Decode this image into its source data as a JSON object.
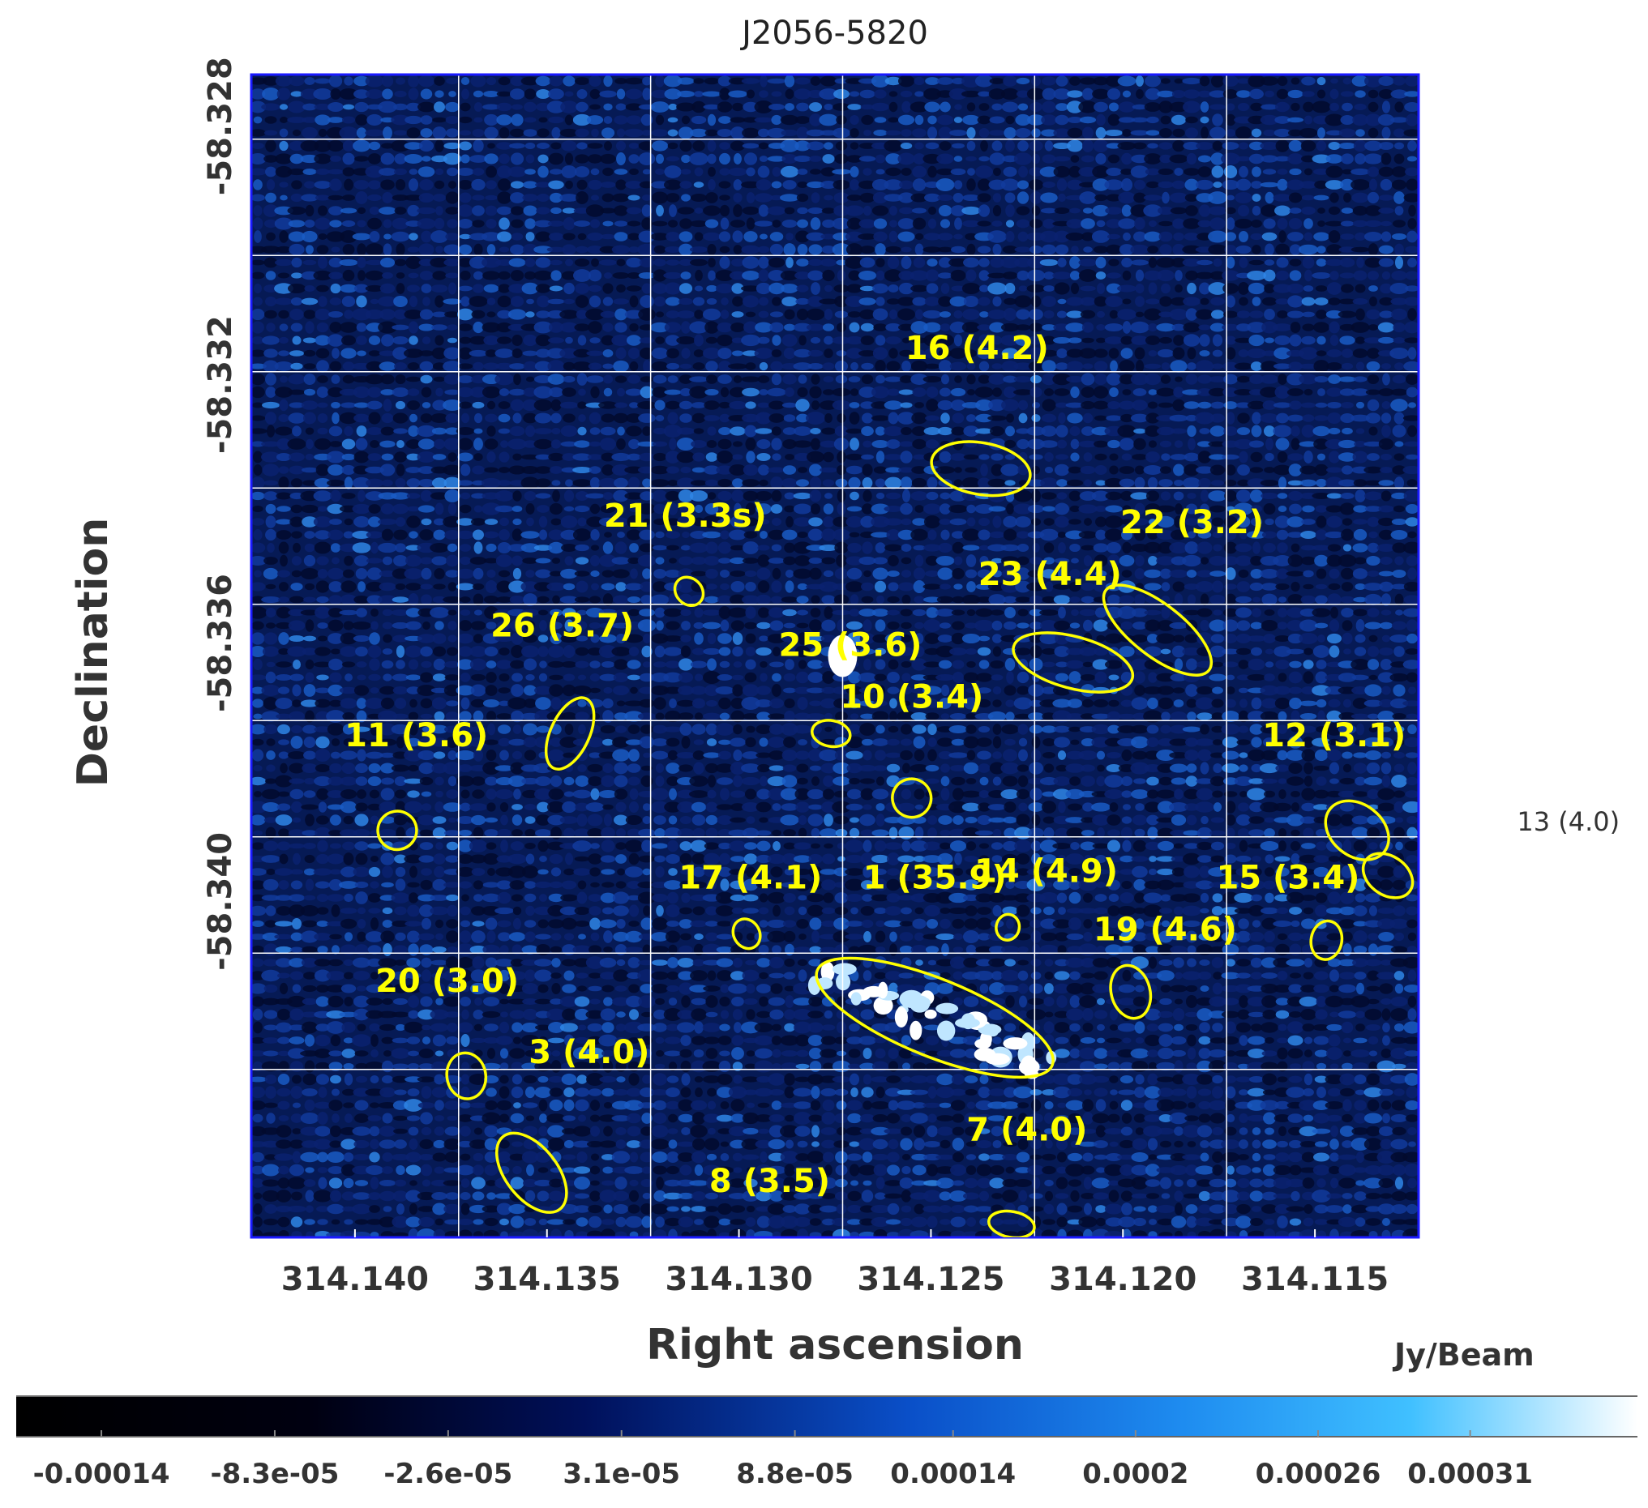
{
  "title": "J2056-5820",
  "xlabel": "Right ascension",
  "ylabel": "Declination",
  "colorbar_unit": "Jy/Beam",
  "colors": {
    "background_map": "#061a55",
    "grid": "#ffffff",
    "ellipse": "#ffff00",
    "label": "#ffff00",
    "frame": "#1a1aff"
  },
  "chart_data": {
    "type": "heatmap",
    "title": "J2056-5820",
    "xlabel": "Right ascension",
    "ylabel": "Declination",
    "xlim": [
      314.1427,
      314.1123
    ],
    "ylim": [
      -58.3452,
      -58.3272
    ],
    "x_ticks": [
      {
        "value": 314.14,
        "label": "314.140"
      },
      {
        "value": 314.135,
        "label": "314.135"
      },
      {
        "value": 314.13,
        "label": "314.130"
      },
      {
        "value": 314.125,
        "label": "314.125"
      },
      {
        "value": 314.12,
        "label": "314.120"
      },
      {
        "value": 314.115,
        "label": "314.115"
      }
    ],
    "y_ticks": [
      {
        "value": -58.328,
        "label": "-58.328"
      },
      {
        "value": -58.332,
        "label": "-58.332"
      },
      {
        "value": -58.336,
        "label": "-58.336"
      },
      {
        "value": -58.34,
        "label": "-58.340"
      }
    ],
    "grid_x": [
      314.1373,
      314.1323,
      314.1273,
      314.1223,
      314.1173,
      314.1123
    ],
    "grid": true,
    "bright_spot": {
      "ra": 314.1273,
      "dec": -58.3362
    },
    "colorbar": {
      "unit": "Jy/Beam",
      "range": [
        -0.000168,
        0.000365
      ],
      "ticks": [
        {
          "value": -0.00014,
          "label": "-0.00014"
        },
        {
          "value": -8.3e-05,
          "label": "-8.3e-05"
        },
        {
          "value": -2.6e-05,
          "label": "-2.6e-05"
        },
        {
          "value": 3.1e-05,
          "label": "3.1e-05"
        },
        {
          "value": 8.8e-05,
          "label": "8.8e-05"
        },
        {
          "value": 0.00014,
          "label": "0.00014"
        },
        {
          "value": 0.0002,
          "label": "0.0002"
        },
        {
          "value": 0.00026,
          "label": "0.00026"
        },
        {
          "value": 0.00031,
          "label": "0.00031"
        }
      ]
    },
    "sources": [
      {
        "id": "1",
        "label": "1 (35.9)",
        "ra": 314.1249,
        "dec": -58.3418,
        "rx": 0.0033,
        "ry": 0.0006,
        "angle": 22,
        "lra": 314.1249,
        "ldec": -58.3398
      },
      {
        "id": "3",
        "label": "3 (4.0)",
        "ra": 314.1354,
        "dec": -58.3442,
        "rx": 0.0012,
        "ry": 0.0004,
        "angle": 52,
        "lra": 314.1339,
        "ldec": -58.3425
      },
      {
        "id": "7",
        "label": "7 (4.0)",
        "ra": 314.1229,
        "dec": -58.345,
        "rx": 0.0006,
        "ry": 0.0002,
        "angle": 10,
        "lra": 314.1225,
        "ldec": -58.3437
      },
      {
        "id": "8",
        "label": "8 (3.5)",
        "ra": 314.1298,
        "dec": -58.3456,
        "rx": 0.0003,
        "ry": 0.0001,
        "angle": 10,
        "lra": 314.1292,
        "ldec": -58.3445
      },
      {
        "id": "10",
        "label": "10 (3.4)",
        "ra": 314.1255,
        "dec": -58.3384,
        "rx": 0.0005,
        "ry": 0.0003,
        "angle": -60,
        "lra": 314.1255,
        "ldec": -58.337
      },
      {
        "id": "11",
        "label": "11 (3.6)",
        "ra": 314.1389,
        "dec": -58.3389,
        "rx": 0.0005,
        "ry": 0.0003,
        "angle": 80,
        "lra": 314.1384,
        "ldec": -58.3376
      },
      {
        "id": "12",
        "label": "12 (3.1)",
        "ra": 314.1139,
        "dec": -58.3389,
        "rx": 0.0009,
        "ry": 0.0004,
        "angle": 38,
        "lra": 314.1145,
        "ldec": -58.3376
      },
      {
        "id": "13",
        "label": "13 (4.0)",
        "ra": 314.1131,
        "dec": -58.3396,
        "rx": 0.0007,
        "ry": 0.0003,
        "angle": 35,
        "lra": 314.1084,
        "ldec": -58.3389
      },
      {
        "id": "14",
        "label": "14 (4.9)",
        "ra": 314.123,
        "dec": -58.3404,
        "rx": 0.0003,
        "ry": 0.0002,
        "angle": 10,
        "lra": 314.122,
        "ldec": -58.3397
      },
      {
        "id": "15",
        "label": "15 (3.4)",
        "ra": 314.1147,
        "dec": -58.3406,
        "rx": 0.0004,
        "ry": 0.0003,
        "angle": 10,
        "lra": 314.1157,
        "ldec": -58.3398
      },
      {
        "id": "16",
        "label": "16 (4.2)",
        "ra": 314.1237,
        "dec": -58.3333,
        "rx": 0.0013,
        "ry": 0.0004,
        "angle": 10,
        "lra": 314.1238,
        "ldec": -58.3316
      },
      {
        "id": "17",
        "label": "17 (4.1)",
        "ra": 314.1298,
        "dec": -58.3405,
        "rx": 0.0004,
        "ry": 0.0002,
        "angle": 60,
        "lra": 314.1297,
        "ldec": -58.3398
      },
      {
        "id": "19",
        "label": "19 (4.6)",
        "ra": 314.1198,
        "dec": -58.3414,
        "rx": 0.0007,
        "ry": 0.0003,
        "angle": 75,
        "lra": 314.1189,
        "ldec": -58.3406
      },
      {
        "id": "20",
        "label": "20 (3.0)",
        "ra": 314.1371,
        "dec": -58.3427,
        "rx": 0.0006,
        "ry": 0.0003,
        "angle": 80,
        "lra": 314.1376,
        "ldec": -58.3414
      },
      {
        "id": "21",
        "label": "21 (3.3s)",
        "ra": 314.1313,
        "dec": -58.3352,
        "rx": 0.0004,
        "ry": 0.0002,
        "angle": 45,
        "lra": 314.1314,
        "ldec": -58.3342
      },
      {
        "id": "22",
        "label": "22 (3.2)",
        "ra": 314.1191,
        "dec": -58.3358,
        "rx": 0.0017,
        "ry": 0.0004,
        "angle": 38,
        "lra": 314.1182,
        "ldec": -58.3343
      },
      {
        "id": "23",
        "label": "23 (4.4)",
        "ra": 314.1213,
        "dec": -58.3363,
        "rx": 0.0016,
        "ry": 0.0004,
        "angle": 15,
        "lra": 314.1219,
        "ldec": -58.3351
      },
      {
        "id": "25",
        "label": "25 (3.6)",
        "ra": 314.1276,
        "dec": -58.3374,
        "rx": 0.0005,
        "ry": 0.0002,
        "angle": 10,
        "lra": 314.1271,
        "ldec": -58.3362
      },
      {
        "id": "26",
        "label": "26 (3.7)",
        "ra": 314.1344,
        "dec": -58.3374,
        "rx": 0.001,
        "ry": 0.0003,
        "angle": -65,
        "lra": 314.1346,
        "ldec": -58.3359
      }
    ]
  }
}
